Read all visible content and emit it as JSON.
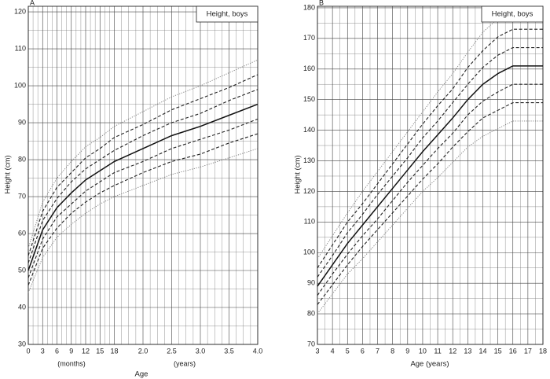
{
  "chart_data": [
    {
      "type": "line",
      "panel_label": "A",
      "title": "Height, boys",
      "xlabel": "Age",
      "ylabel": "Height (cm)",
      "x_notes": [
        "(months)",
        "(years)"
      ],
      "x": [
        0,
        0.25,
        0.5,
        0.75,
        1,
        1.25,
        1.5,
        2,
        2.5,
        3,
        3.5,
        4
      ],
      "series": [
        {
          "color": "#777777",
          "style": "dotted",
          "values": [
            44,
            53.5,
            59,
            62.5,
            65.5,
            68,
            70,
            73,
            76,
            78,
            80.5,
            83
          ]
        },
        {
          "color": "#222222",
          "style": "dashed",
          "values": [
            46,
            56,
            61.5,
            65.5,
            68.5,
            71,
            73,
            76.5,
            79.5,
            81.5,
            84.5,
            87
          ]
        },
        {
          "color": "#222222",
          "style": "dashed",
          "values": [
            48,
            58.5,
            64.5,
            68,
            71.5,
            74,
            76.5,
            79.5,
            83,
            85.5,
            88,
            91
          ]
        },
        {
          "color": "#111111",
          "style": "solid",
          "values": [
            50,
            61,
            67,
            71,
            74.5,
            77,
            79.5,
            83,
            86.5,
            89,
            92,
            95
          ]
        },
        {
          "color": "#222222",
          "style": "dashed",
          "values": [
            52,
            63.5,
            69.5,
            74,
            77.5,
            80,
            82.5,
            86.5,
            90,
            92.5,
            96,
            99
          ]
        },
        {
          "color": "#222222",
          "style": "dashed",
          "values": [
            54,
            66,
            72.5,
            76.5,
            80.5,
            83,
            86,
            89.5,
            93.5,
            96.5,
            99.5,
            103
          ]
        },
        {
          "color": "#777777",
          "style": "dotted",
          "values": [
            56,
            68.5,
            75,
            79.5,
            83.5,
            86,
            89,
            93,
            97,
            100,
            103.5,
            107
          ]
        }
      ],
      "xlim": [
        0,
        4
      ],
      "ylim": [
        30,
        121.5
      ],
      "xticks": [
        0,
        {
          "value": 0.25,
          "label": "3"
        },
        {
          "value": 0.5,
          "label": "6"
        },
        {
          "value": 0.75,
          "label": "9"
        },
        {
          "value": 1,
          "label": "12"
        },
        {
          "value": 1.25,
          "label": "15"
        },
        {
          "value": 1.5,
          "label": "18"
        },
        {
          "value": 2,
          "label": "2.0"
        },
        2.5,
        {
          "value": 3,
          "label": "3.0"
        },
        3.5,
        {
          "value": 4,
          "label": "4.0"
        }
      ],
      "yticks": [
        30,
        40,
        50,
        60,
        70,
        80,
        90,
        100,
        110,
        120
      ],
      "grid": true
    },
    {
      "type": "line",
      "panel_label": "B",
      "title": "Height, boys",
      "xlabel": "Age (years)",
      "ylabel": "Height (cm)",
      "x": [
        3,
        4,
        5,
        6,
        7,
        8,
        9,
        10,
        11,
        12,
        13,
        14,
        15,
        16,
        17,
        18
      ],
      "series": [
        {
          "color": "#777777",
          "style": "dotted",
          "values": [
            80,
            86.5,
            93,
            98,
            103.5,
            109,
            114.5,
            120,
            124.5,
            129.5,
            134.5,
            138,
            140.5,
            143,
            143,
            143
          ]
        },
        {
          "color": "#222222",
          "style": "dashed",
          "values": [
            83,
            89.5,
            96,
            102,
            107.5,
            113,
            118.5,
            124,
            129,
            134.5,
            139.5,
            144,
            146.5,
            149,
            149,
            149
          ]
        },
        {
          "color": "#222222",
          "style": "dashed",
          "values": [
            86,
            93,
            99.5,
            105.5,
            111,
            117,
            123,
            128.5,
            134,
            139,
            145,
            149.5,
            152.5,
            155,
            155,
            155
          ]
        },
        {
          "color": "#111111",
          "style": "solid",
          "values": [
            89,
            96,
            103,
            109,
            115,
            121,
            127,
            133,
            138.5,
            144,
            150,
            155,
            158.5,
            161,
            161,
            161
          ]
        },
        {
          "color": "#222222",
          "style": "dashed",
          "values": [
            92,
            99,
            106.5,
            112.5,
            119,
            125,
            131,
            137.5,
            143,
            149,
            155,
            160.5,
            164.5,
            167,
            167,
            167
          ]
        },
        {
          "color": "#222222",
          "style": "dashed",
          "values": [
            95,
            102.5,
            110,
            116,
            122.5,
            129,
            135.5,
            142,
            148,
            153.5,
            160.5,
            166,
            170.5,
            173,
            173,
            173
          ]
        },
        {
          "color": "#777777",
          "style": "dotted",
          "values": [
            98,
            105.5,
            113,
            120,
            126.5,
            133,
            139.5,
            146,
            152.5,
            158.5,
            165.5,
            172,
            176.5,
            179,
            179,
            179
          ]
        }
      ],
      "xlim": [
        3,
        18
      ],
      "ylim": [
        70,
        180.5
      ],
      "xticks": [
        3,
        4,
        5,
        6,
        7,
        8,
        9,
        10,
        11,
        12,
        13,
        14,
        15,
        16,
        17,
        18
      ],
      "yticks": [
        70,
        80,
        90,
        100,
        110,
        120,
        130,
        140,
        150,
        160,
        170,
        180
      ],
      "grid": true
    }
  ]
}
